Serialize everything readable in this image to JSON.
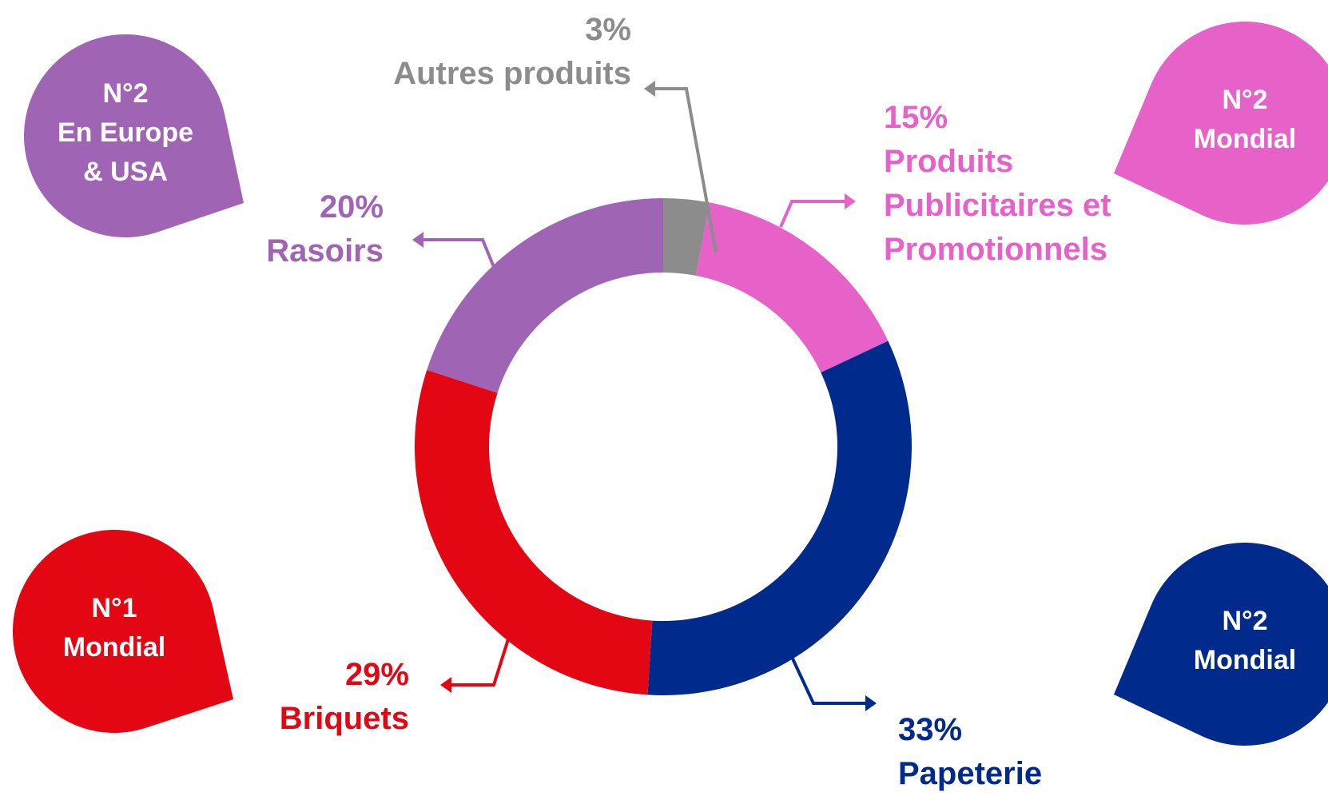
{
  "chart_data": {
    "type": "donut",
    "categories": [
      "Autres produits",
      "Produits Publicitaires et Promotionnels",
      "Papeterie",
      "Briquets",
      "Rasoirs"
    ],
    "values": [
      3,
      15,
      33,
      29,
      20
    ],
    "value_labels": [
      "3%",
      "15%",
      "33%",
      "29%",
      "20%"
    ],
    "colors": [
      "#8c8c8c",
      "#e661c8",
      "#002a8c",
      "#e30613",
      "#a064b4"
    ],
    "badges": [
      {
        "lines": [
          "N°2",
          "En Europe",
          "& USA"
        ],
        "color": "#a064b4"
      },
      {
        "lines": [
          "N°2",
          "Mondial"
        ],
        "color": "#e661c8"
      },
      {
        "lines": [
          "N°1",
          "Mondial"
        ],
        "color": "#e30613"
      },
      {
        "lines": [
          "N°2",
          "Mondial"
        ],
        "color": "#002a8c"
      }
    ]
  }
}
